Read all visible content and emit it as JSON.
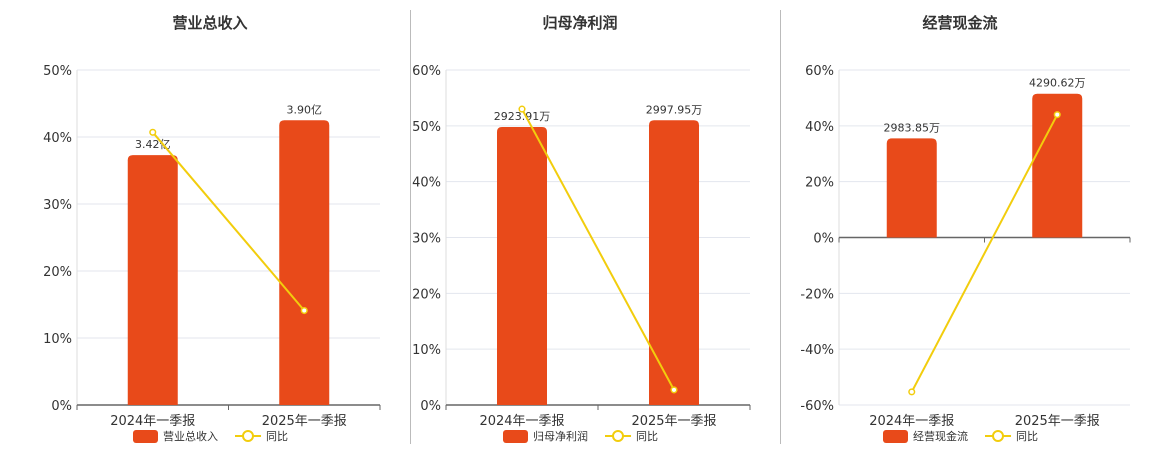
{
  "colors": {
    "bar": "#e84a1a",
    "line": "#f2cd0d",
    "grid": "#e3e6ee",
    "axis": "#666666"
  },
  "chart_data": [
    {
      "type": "bar",
      "title": "营业总收入",
      "categories": [
        "2024年一季报",
        "2025年一季报"
      ],
      "bar_labels": [
        "3.42亿",
        "3.90亿"
      ],
      "yticks": [
        "50%",
        "40%",
        "30%",
        "20%",
        "10%",
        "0%"
      ],
      "ylim": [
        0,
        50
      ],
      "series": [
        {
          "name": "营业总收入",
          "type": "bar",
          "values": [
            37.3,
            42.5
          ]
        },
        {
          "name": "同比",
          "type": "line",
          "values": [
            40.7,
            14.1
          ]
        }
      ],
      "legend": [
        "营业总收入",
        "同比"
      ]
    },
    {
      "type": "bar",
      "title": "归母净利润",
      "categories": [
        "2024年一季报",
        "2025年一季报"
      ],
      "bar_labels": [
        "2923.91万",
        "2997.95万"
      ],
      "yticks": [
        "60%",
        "50%",
        "40%",
        "30%",
        "20%",
        "10%",
        "0%"
      ],
      "ylim": [
        0,
        60
      ],
      "series": [
        {
          "name": "归母净利润",
          "type": "bar",
          "values": [
            49.8,
            51.0
          ]
        },
        {
          "name": "同比",
          "type": "line",
          "values": [
            53.0,
            2.7
          ]
        }
      ],
      "legend": [
        "归母净利润",
        "同比"
      ]
    },
    {
      "type": "bar",
      "title": "经营现金流",
      "categories": [
        "2024年一季报",
        "2025年一季报"
      ],
      "bar_labels": [
        "2983.85万",
        "4290.62万"
      ],
      "yticks": [
        "60%",
        "40%",
        "20%",
        "0%",
        "-20%",
        "-40%",
        "-60%"
      ],
      "ylim": [
        -60,
        60
      ],
      "series": [
        {
          "name": "经营现金流",
          "type": "bar",
          "values": [
            35.5,
            51.5
          ]
        },
        {
          "name": "同比",
          "type": "line",
          "values": [
            -55.3,
            44.0
          ]
        }
      ],
      "legend": [
        "经营现金流",
        "同比"
      ]
    }
  ]
}
